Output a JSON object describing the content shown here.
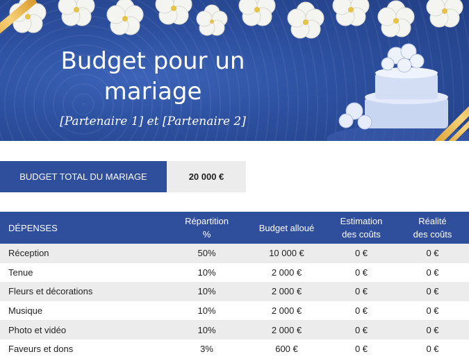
{
  "banner": {
    "title_line1": "Budget pour un",
    "title_line2": "mariage",
    "subtitle": "[Partenaire 1] et [Partenaire 2]"
  },
  "total": {
    "label": "BUDGET TOTAL DU MARIAGE",
    "value": "20 000 €"
  },
  "table": {
    "headers": {
      "expenses": "DÉPENSES",
      "split_line1": "Répartition",
      "split_line2": "%",
      "allocated": "Budget alloué",
      "estimate_line1": "Estimation",
      "estimate_line2": "des coûts",
      "actual_line1": "Réalité",
      "actual_line2": "des coûts"
    },
    "rows": [
      {
        "name": "Réception",
        "split": "50%",
        "allocated": "10 000 €",
        "estimate": "0 €",
        "actual": "0 €"
      },
      {
        "name": "Tenue",
        "split": "10%",
        "allocated": "2 000 €",
        "estimate": "0 €",
        "actual": "0 €"
      },
      {
        "name": "Fleurs et décorations",
        "split": "10%",
        "allocated": "2 000 €",
        "estimate": "0 €",
        "actual": "0 €"
      },
      {
        "name": "Musique",
        "split": "10%",
        "allocated": "2 000 €",
        "estimate": "0 €",
        "actual": "0 €"
      },
      {
        "name": "Photo et vidéo",
        "split": "10%",
        "allocated": "2 000 €",
        "estimate": "0 €",
        "actual": "0 €"
      },
      {
        "name": "Faveurs et dons",
        "split": "3%",
        "allocated": "600 €",
        "estimate": "0 €",
        "actual": "0 €"
      }
    ]
  },
  "colors": {
    "header_blue": "#2f4f9c",
    "row_alt": "#ececec",
    "ribbon_gold": "#e0a93a"
  }
}
